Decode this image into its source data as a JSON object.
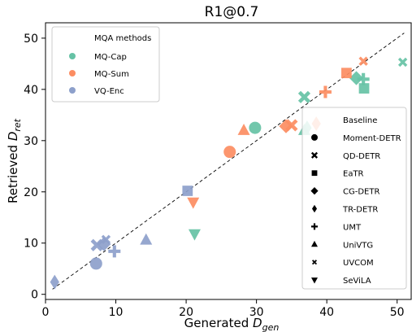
{
  "chart_data": {
    "type": "scatter",
    "title": "R1@0.7",
    "xlabel": "Generated ",
    "xlabel_sub": "gen",
    "ylabel": "Retrieved ",
    "ylabel_sub": "ret",
    "xlim": [
      0,
      52
    ],
    "ylim": [
      -1,
      53
    ],
    "xticks": [
      0,
      10,
      20,
      30,
      40,
      50
    ],
    "yticks": [
      0,
      10,
      20,
      30,
      40,
      50
    ],
    "grid": false,
    "diagonal": {
      "style": "dashed",
      "from": [
        1,
        1
      ],
      "to": [
        51,
        51
      ]
    },
    "color_legend": {
      "title": "MQA methods",
      "position": "upper-left",
      "entries": [
        {
          "label": "MQ-Cap",
          "color": "#66c2a5"
        },
        {
          "label": "MQ-Sum",
          "color": "#fc8d62"
        },
        {
          "label": "VQ-Enc",
          "color": "#8da0cb"
        }
      ]
    },
    "marker_legend": {
      "position": "lower-right",
      "entries": [
        {
          "label": "Baseline",
          "marker": "none"
        },
        {
          "label": "Moment-DETR",
          "marker": "circle"
        },
        {
          "label": "QD-DETR",
          "marker": "x-thick"
        },
        {
          "label": "EaTR",
          "marker": "square"
        },
        {
          "label": "CG-DETR",
          "marker": "diamond"
        },
        {
          "label": "TR-DETR",
          "marker": "thin-diamond"
        },
        {
          "label": "UMT",
          "marker": "plus"
        },
        {
          "label": "UniVTG",
          "marker": "triangle-up"
        },
        {
          "label": "UVCOM",
          "marker": "x-filled"
        },
        {
          "label": "SeViLA",
          "marker": "triangle-down"
        }
      ]
    },
    "series": [
      {
        "name": "MQ-Cap",
        "color": "#66c2a5",
        "points": [
          {
            "x": 29.8,
            "y": 32.5,
            "marker": "circle"
          },
          {
            "x": 36.8,
            "y": 38.5,
            "marker": "x-thick"
          },
          {
            "x": 45.3,
            "y": 40.2,
            "marker": "square"
          },
          {
            "x": 44.2,
            "y": 42.2,
            "marker": "diamond"
          },
          {
            "x": 37.2,
            "y": 32.5,
            "marker": "thin-diamond"
          },
          {
            "x": 45.2,
            "y": 42.0,
            "marker": "plus"
          },
          {
            "x": 36.8,
            "y": 32.0,
            "marker": "triangle-up"
          },
          {
            "x": 50.8,
            "y": 45.3,
            "marker": "x-filled"
          },
          {
            "x": 21.2,
            "y": 11.8,
            "marker": "triangle-down"
          }
        ]
      },
      {
        "name": "MQ-Sum",
        "color": "#fc8d62",
        "points": [
          {
            "x": 26.2,
            "y": 27.8,
            "marker": "circle"
          },
          {
            "x": 35.0,
            "y": 33.0,
            "marker": "x-thick"
          },
          {
            "x": 42.8,
            "y": 43.2,
            "marker": "square"
          },
          {
            "x": 34.2,
            "y": 32.8,
            "marker": "diamond"
          },
          {
            "x": 38.5,
            "y": 33.3,
            "marker": "thin-diamond"
          },
          {
            "x": 39.8,
            "y": 39.5,
            "marker": "plus"
          },
          {
            "x": 28.2,
            "y": 32.0,
            "marker": "triangle-up"
          },
          {
            "x": 45.2,
            "y": 45.5,
            "marker": "x-filled"
          },
          {
            "x": 21.0,
            "y": 18.0,
            "marker": "triangle-down"
          }
        ]
      },
      {
        "name": "VQ-Enc",
        "color": "#8da0cb",
        "points": [
          {
            "x": 7.2,
            "y": 6.0,
            "marker": "circle"
          },
          {
            "x": 7.3,
            "y": 9.6,
            "marker": "x-thick"
          },
          {
            "x": 20.2,
            "y": 20.2,
            "marker": "square"
          },
          {
            "x": 8.3,
            "y": 9.8,
            "marker": "diamond"
          },
          {
            "x": 1.3,
            "y": 2.4,
            "marker": "thin-diamond"
          },
          {
            "x": 9.8,
            "y": 8.4,
            "marker": "plus"
          },
          {
            "x": 14.3,
            "y": 10.6,
            "marker": "triangle-up"
          },
          {
            "x": 8.6,
            "y": 10.7,
            "marker": "x-filled"
          }
        ]
      }
    ]
  }
}
